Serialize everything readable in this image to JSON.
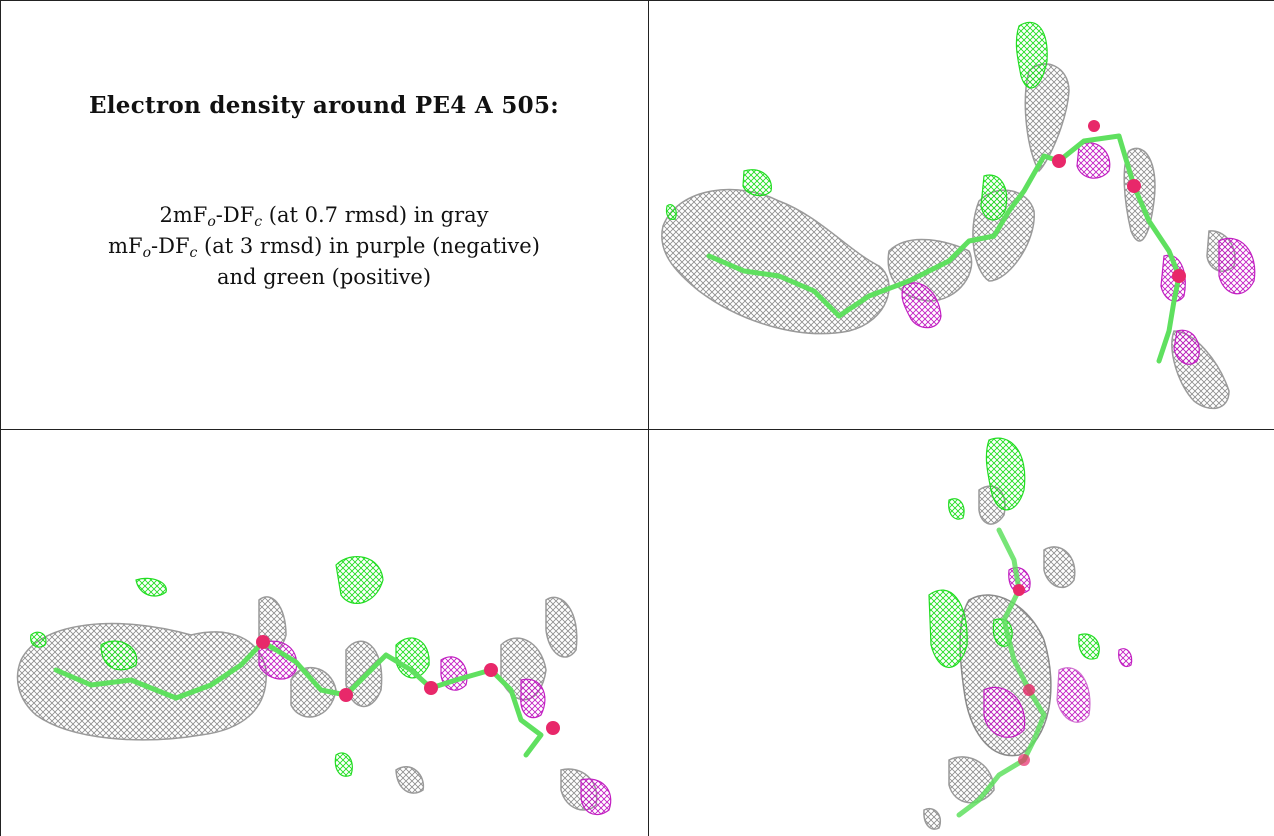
{
  "caption": {
    "title": "Electron density around PE4 A 505:",
    "line1": {
      "a": "2mF",
      "a_sub": "o",
      "b": "-DF",
      "b_sub": "c",
      "rest": " (at 0.7 rmsd) in gray"
    },
    "line2": {
      "a": "mF",
      "a_sub": "o",
      "b": "-DF",
      "b_sub": "c",
      "rest": " (at 3 rmsd) in purple (negative)"
    },
    "line3": "and green (positive)"
  },
  "panels": [
    {
      "name": "view-top-right",
      "description_icon": "electron-density-render"
    },
    {
      "name": "view-bottom-left",
      "description_icon": "electron-density-render"
    },
    {
      "name": "view-bottom-right",
      "description_icon": "electron-density-render"
    }
  ],
  "colors": {
    "density_2fofc": "#9a9a9a",
    "difference_negative": "#c21fc2",
    "difference_positive": "#33e833",
    "ligand_stick": "#66e066",
    "oxygen_atom": "#e8286a"
  }
}
